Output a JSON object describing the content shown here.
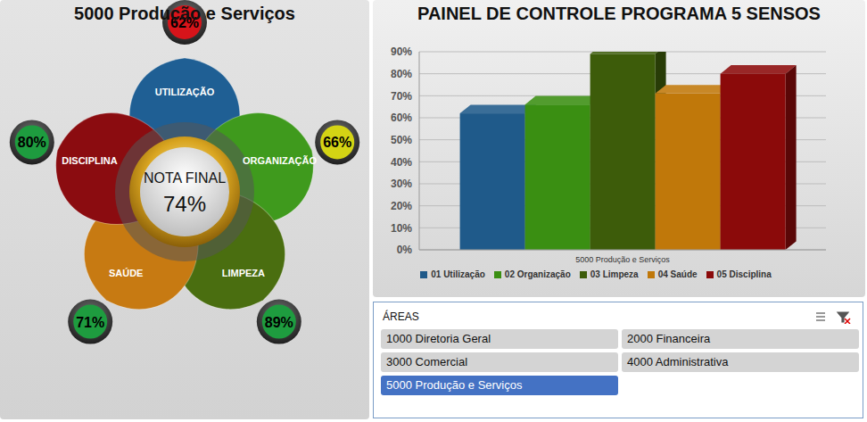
{
  "panel": {
    "title": "5000 Produção e Serviços",
    "final": {
      "label": "NOTA FINAL",
      "value": 74,
      "value_label": "74%"
    },
    "senses": [
      {
        "name": "UTILIZAÇÃO",
        "value": 62,
        "value_label": "62%",
        "color": "#1f5f94"
      },
      {
        "name": "ORGANIZAÇÃO",
        "value": 66,
        "value_label": "66%",
        "color": "#3f9a1d"
      },
      {
        "name": "LIMPEZA",
        "value": 89,
        "value_label": "89%",
        "color": "#4a6e10"
      },
      {
        "name": "SAÚDE",
        "value": 71,
        "value_label": "71%",
        "color": "#c77a12"
      },
      {
        "name": "DISCIPLINA",
        "value": 80,
        "value_label": "80%",
        "color": "#8b0c10"
      }
    ]
  },
  "chart_data": {
    "type": "bar",
    "title": "PAINEL DE CONTROLE PROGRAMA 5 SENSOS",
    "categories": [
      "5000 Produção e Serviços"
    ],
    "series": [
      {
        "name": "01 Utilização",
        "color": "#1f5a8a",
        "values": [
          62
        ]
      },
      {
        "name": "02 Organização",
        "color": "#3a8f12",
        "values": [
          66
        ]
      },
      {
        "name": "03 Limpeza",
        "color": "#3d5c0a",
        "values": [
          89
        ]
      },
      {
        "name": "04 Saúde",
        "color": "#c0780a",
        "values": [
          71
        ]
      },
      {
        "name": "05 Disciplina",
        "color": "#8b0a0a",
        "values": [
          80
        ]
      }
    ],
    "ylim": [
      0,
      90
    ],
    "yticks": [
      {
        "value": 0,
        "label": "0%"
      },
      {
        "value": 10,
        "label": "10%"
      },
      {
        "value": 20,
        "label": "20%"
      },
      {
        "value": 30,
        "label": "30%"
      },
      {
        "value": 40,
        "label": "40%"
      },
      {
        "value": 50,
        "label": "50%"
      },
      {
        "value": 60,
        "label": "60%"
      },
      {
        "value": 70,
        "label": "70%"
      },
      {
        "value": 80,
        "label": "80%"
      },
      {
        "value": 90,
        "label": "90%"
      }
    ],
    "grid": true,
    "legend": "bottom"
  },
  "slicer": {
    "title": "ÁREAS",
    "items": [
      "1000 Diretoria Geral",
      "2000 Financeira",
      "3000 Comercial",
      "4000 Administrativa",
      "5000 Produção e Serviços"
    ],
    "selected": "5000 Produção e Serviços"
  }
}
